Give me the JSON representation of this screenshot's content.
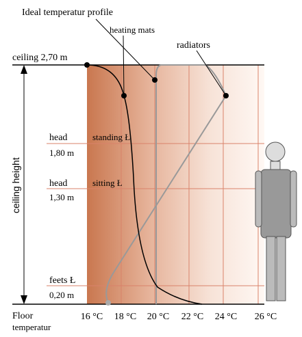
{
  "title": "Ideal temperatur profile",
  "labels": {
    "heating_mats": "heating mats",
    "radiators": "radiators",
    "ceiling": "ceiling 2,70 m",
    "ceiling_height": "ceiling height",
    "head_standing": "head",
    "standing": "standing Ł",
    "standing_height": "1,80 m",
    "head_sitting": "head",
    "sitting": "sitting Ł",
    "sitting_height": "1,30 m",
    "feets": "feets Ł",
    "feets_height": "0,20 m",
    "floor": "Floor",
    "floor2": "temperatur"
  },
  "temperatures": [
    "16 °C",
    "18 °C",
    "20 °C",
    "22 °C",
    "24 °C",
    "26 °C"
  ]
}
